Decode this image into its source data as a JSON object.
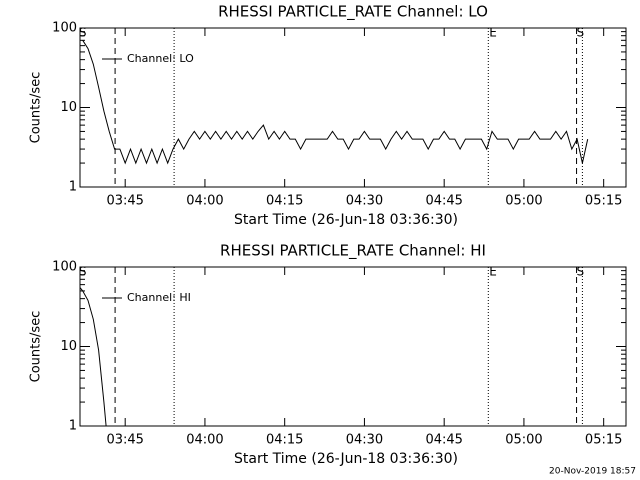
{
  "chart_data": [
    {
      "type": "line",
      "title": "RHESSI PARTICLE_RATE Channel: LO",
      "xlabel": "Start Time (26-Jun-18 03:36:30)",
      "ylabel": "Counts/sec",
      "xlim": [
        36.5,
        139.2
      ],
      "xticks": [
        {
          "value": 45,
          "label": "03:45"
        },
        {
          "value": 60,
          "label": "04:00"
        },
        {
          "value": 75,
          "label": "04:15"
        },
        {
          "value": 90,
          "label": "04:30"
        },
        {
          "value": 105,
          "label": "04:45"
        },
        {
          "value": 120,
          "label": "05:00"
        },
        {
          "value": 135,
          "label": "05:15"
        }
      ],
      "ylim": [
        1,
        100
      ],
      "yscale": "log",
      "yticks": [
        1,
        10,
        100
      ],
      "yminorticks": [
        2,
        3,
        4,
        5,
        6,
        7,
        8,
        9,
        20,
        30,
        40,
        50,
        60,
        70,
        80,
        90
      ],
      "legend": "upper left",
      "series": [
        {
          "name": "Channel: LO",
          "color": "#000000",
          "x": [
            37,
            38,
            39,
            40,
            41,
            42,
            43,
            44,
            45,
            46,
            47,
            48,
            49,
            50,
            51,
            52,
            53,
            54,
            55,
            56,
            57,
            58,
            59,
            60,
            61,
            62,
            63,
            64,
            65,
            66,
            67,
            68,
            69,
            70,
            71,
            72,
            73,
            74,
            75,
            76,
            77,
            78,
            79,
            80,
            81,
            82,
            83,
            84,
            85,
            86,
            87,
            88,
            89,
            90,
            91,
            92,
            93,
            94,
            95,
            96,
            97,
            98,
            99,
            100,
            101,
            102,
            103,
            104,
            105,
            106,
            107,
            108,
            109,
            110,
            111,
            112,
            113,
            114,
            115,
            116,
            117,
            118,
            119,
            120,
            121,
            122,
            123,
            124,
            125,
            126,
            127,
            128,
            129,
            130,
            131,
            132
          ],
          "values": [
            70,
            55,
            35,
            18,
            9,
            5,
            3,
            3,
            2,
            3,
            2,
            3,
            2,
            3,
            2,
            3,
            2,
            3,
            4,
            3,
            4,
            5,
            4,
            5,
            4,
            5,
            4,
            5,
            4,
            5,
            4,
            5,
            4,
            5,
            6,
            4,
            5,
            4,
            5,
            4,
            4,
            3,
            4,
            4,
            4,
            4,
            4,
            5,
            4,
            4,
            3,
            4,
            4,
            5,
            4,
            4,
            4,
            3,
            4,
            5,
            4,
            5,
            4,
            4,
            4,
            3,
            4,
            4,
            5,
            4,
            4,
            3,
            4,
            4,
            4,
            4,
            3,
            5,
            4,
            4,
            4,
            3,
            4,
            4,
            4,
            5,
            4,
            4,
            4,
            5,
            4,
            5,
            3,
            4,
            2,
            4
          ]
        }
      ],
      "vlines": [
        {
          "x": 43.1,
          "style": "dashed"
        },
        {
          "x": 54.2,
          "style": "dotted"
        },
        {
          "x": 113.3,
          "style": "dotted"
        },
        {
          "x": 129.9,
          "style": "dashed"
        },
        {
          "x": 131.0,
          "style": "dotted"
        }
      ],
      "flags": [
        {
          "text": "S",
          "x": 37.0
        },
        {
          "text": "E",
          "x": 114.2
        },
        {
          "text": "S",
          "x": 130.6
        }
      ]
    },
    {
      "type": "line",
      "title": "RHESSI PARTICLE_RATE Channel: HI",
      "xlabel": "Start Time (26-Jun-18 03:36:30)",
      "ylabel": "Counts/sec",
      "xlim": [
        36.5,
        139.2
      ],
      "xticks": [
        {
          "value": 45,
          "label": "03:45"
        },
        {
          "value": 60,
          "label": "04:00"
        },
        {
          "value": 75,
          "label": "04:15"
        },
        {
          "value": 90,
          "label": "04:30"
        },
        {
          "value": 105,
          "label": "04:45"
        },
        {
          "value": 120,
          "label": "05:00"
        },
        {
          "value": 135,
          "label": "05:15"
        }
      ],
      "ylim": [
        1,
        100
      ],
      "yscale": "log",
      "yticks": [
        1,
        10,
        100
      ],
      "yminorticks": [
        2,
        3,
        4,
        5,
        6,
        7,
        8,
        9,
        20,
        30,
        40,
        50,
        60,
        70,
        80,
        90
      ],
      "legend": "upper left",
      "series": [
        {
          "name": "Channel: HI",
          "color": "#000000",
          "x": [
            36.5,
            37,
            38,
            39,
            40,
            41,
            41.4
          ],
          "values": [
            55,
            50,
            38,
            22,
            9,
            2,
            1
          ]
        }
      ],
      "vlines": [
        {
          "x": 43.1,
          "style": "dashed"
        },
        {
          "x": 54.2,
          "style": "dotted"
        },
        {
          "x": 113.3,
          "style": "dotted"
        },
        {
          "x": 129.9,
          "style": "dashed"
        },
        {
          "x": 131.0,
          "style": "dotted"
        }
      ],
      "flags": [
        {
          "text": "S",
          "x": 37.0
        },
        {
          "text": "E",
          "x": 114.2
        },
        {
          "text": "S",
          "x": 130.6
        }
      ]
    }
  ],
  "footer": "20-Nov-2019 18:57"
}
